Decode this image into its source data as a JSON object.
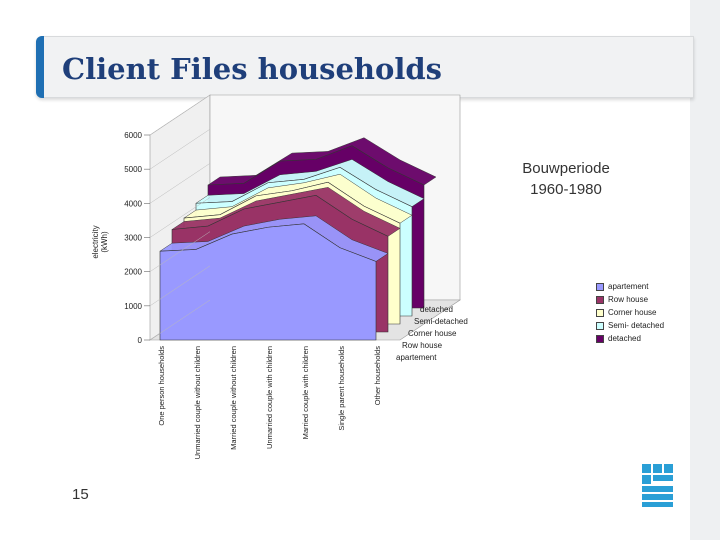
{
  "page": {
    "title": "Client Files households",
    "subtitle_line1": "Bouwperiode",
    "subtitle_line2": "1960-1980",
    "page_number": "15"
  },
  "colors": {
    "title": "#1f3f7a",
    "accent": "#1f6fb3"
  },
  "chart_data": {
    "type": "area",
    "title": "",
    "ylabel_line1": "electricity",
    "ylabel_line2": "(kWh)",
    "ylim": [
      0,
      6000
    ],
    "yticks": [
      "0",
      "1000",
      "2000",
      "3000",
      "4000",
      "5000",
      "6000"
    ],
    "categories": [
      "One person households",
      "Unmarried couple without children",
      "Married couple without children",
      "Unmarried couple with children",
      "Married couple with children",
      "Single parent households",
      "Other households"
    ],
    "depth_labels": [
      "detached",
      "Semi-detached",
      "Corner house",
      "Row house",
      "apartement"
    ],
    "legend_position": "right",
    "series": [
      {
        "name": "apartement",
        "color": "#9999ff",
        "values": [
          2600,
          2650,
          3100,
          3300,
          3400,
          2700,
          2300
        ]
      },
      {
        "name": "Row house",
        "color": "#993366",
        "values": [
          3000,
          3100,
          3600,
          3800,
          4000,
          3300,
          2800
        ]
      },
      {
        "name": "Corner house",
        "color": "#ffffcc",
        "values": [
          3100,
          3200,
          3750,
          3900,
          4150,
          3450,
          2950
        ]
      },
      {
        "name": "Semi- detached",
        "color": "#ccffff",
        "values": [
          3300,
          3350,
          3900,
          4000,
          4350,
          3700,
          3200
        ]
      },
      {
        "name": "detached",
        "color": "#660066",
        "values": [
          3600,
          3650,
          4300,
          4350,
          4750,
          4100,
          3600
        ]
      }
    ]
  }
}
